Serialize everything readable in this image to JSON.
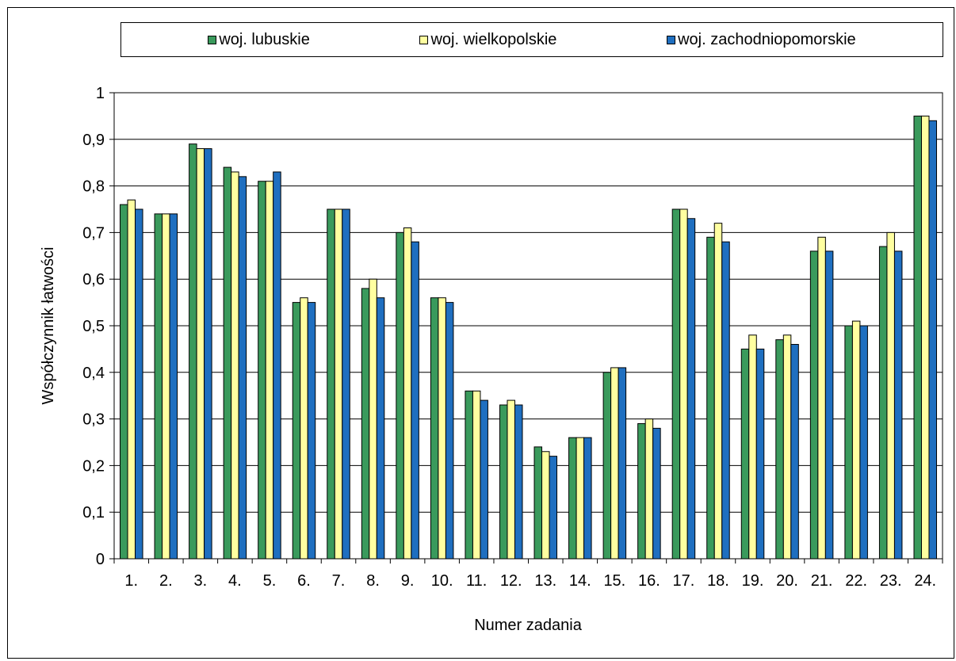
{
  "chart_data": {
    "type": "bar",
    "title": "",
    "xlabel": "Numer zadania",
    "ylabel": "Współczynnik łatwości",
    "ylim": [
      0,
      1
    ],
    "yticks": [
      "0",
      "0,1",
      "0,2",
      "0,3",
      "0,4",
      "0,5",
      "0,6",
      "0,7",
      "0,8",
      "0,9",
      "1"
    ],
    "grid": true,
    "legend_position": "top",
    "categories": [
      "1.",
      "2.",
      "3.",
      "4.",
      "5.",
      "6.",
      "7.",
      "8.",
      "9.",
      "10.",
      "11.",
      "12.",
      "13.",
      "14.",
      "15.",
      "16.",
      "17.",
      "18.",
      "19.",
      "20.",
      "21.",
      "22.",
      "23.",
      "24."
    ],
    "series": [
      {
        "name": "woj. lubuskie",
        "color": "#3a9a5c",
        "values": [
          0.76,
          0.74,
          0.89,
          0.84,
          0.81,
          0.55,
          0.75,
          0.58,
          0.7,
          0.56,
          0.36,
          0.33,
          0.24,
          0.26,
          0.4,
          0.29,
          0.75,
          0.69,
          0.45,
          0.47,
          0.66,
          0.5,
          0.67,
          0.95
        ]
      },
      {
        "name": "woj. wielkopolskie",
        "color": "#ffffa0",
        "values": [
          0.77,
          0.74,
          0.88,
          0.83,
          0.81,
          0.56,
          0.75,
          0.6,
          0.71,
          0.56,
          0.36,
          0.34,
          0.23,
          0.26,
          0.41,
          0.3,
          0.75,
          0.72,
          0.48,
          0.48,
          0.69,
          0.51,
          0.7,
          0.95
        ]
      },
      {
        "name": "woj. zachodniopomorskie",
        "color": "#1f6fc0",
        "values": [
          0.75,
          0.74,
          0.88,
          0.82,
          0.83,
          0.55,
          0.75,
          0.56,
          0.68,
          0.55,
          0.34,
          0.33,
          0.22,
          0.26,
          0.41,
          0.28,
          0.73,
          0.68,
          0.45,
          0.46,
          0.66,
          0.5,
          0.66,
          0.94
        ]
      }
    ]
  }
}
